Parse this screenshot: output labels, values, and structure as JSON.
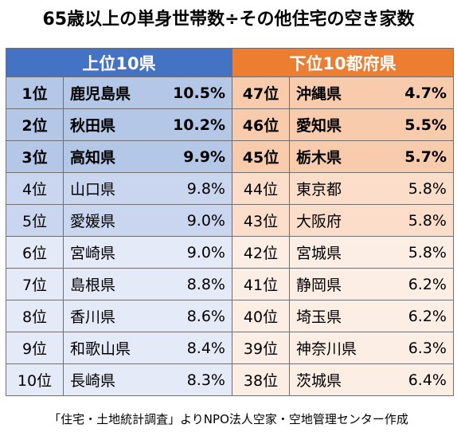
{
  "title": "65歳以上の単身世帯数÷その他住宅の空き家数",
  "colors": {
    "top_header": "#4472c4",
    "bottom_header": "#ed7d31",
    "top_strong": "#b4c7e7",
    "bottom_strong": "#f8cbad"
  },
  "chart_data": {
    "type": "table",
    "title": "65歳以上の単身世帯数÷その他住宅の空き家数",
    "top_header": "上位10県",
    "bottom_header": "下位10都府県",
    "top": [
      {
        "rank": "1位",
        "prefecture": "鹿児島県",
        "value": "10.5%"
      },
      {
        "rank": "2位",
        "prefecture": "秋田県",
        "value": "10.2%"
      },
      {
        "rank": "3位",
        "prefecture": "高知県",
        "value": "9.9%"
      },
      {
        "rank": "4位",
        "prefecture": "山口県",
        "value": "9.8%"
      },
      {
        "rank": "5位",
        "prefecture": "愛媛県",
        "value": "9.0%"
      },
      {
        "rank": "6位",
        "prefecture": "宮崎県",
        "value": "9.0%"
      },
      {
        "rank": "7位",
        "prefecture": "島根県",
        "value": "8.8%"
      },
      {
        "rank": "8位",
        "prefecture": "香川県",
        "value": "8.6%"
      },
      {
        "rank": "9位",
        "prefecture": "和歌山県",
        "value": "8.4%"
      },
      {
        "rank": "10位",
        "prefecture": "長崎県",
        "value": "8.3%"
      }
    ],
    "bottom": [
      {
        "rank": "47位",
        "prefecture": "沖縄県",
        "value": "4.7%"
      },
      {
        "rank": "46位",
        "prefecture": "愛知県",
        "value": "5.5%"
      },
      {
        "rank": "45位",
        "prefecture": "栃木県",
        "value": "5.7%"
      },
      {
        "rank": "44位",
        "prefecture": "東京都",
        "value": "5.8%"
      },
      {
        "rank": "43位",
        "prefecture": "大阪府",
        "value": "5.8%"
      },
      {
        "rank": "42位",
        "prefecture": "宮城県",
        "value": "5.8%"
      },
      {
        "rank": "41位",
        "prefecture": "静岡県",
        "value": "6.2%"
      },
      {
        "rank": "40位",
        "prefecture": "埼玉県",
        "value": "6.2%"
      },
      {
        "rank": "39位",
        "prefecture": "神奈川県",
        "value": "6.3%"
      },
      {
        "rank": "38位",
        "prefecture": "茨城県",
        "value": "6.4%"
      }
    ]
  },
  "source": "「住宅・土地統計調査」よりNPO法人空家・空地管理センター作成"
}
